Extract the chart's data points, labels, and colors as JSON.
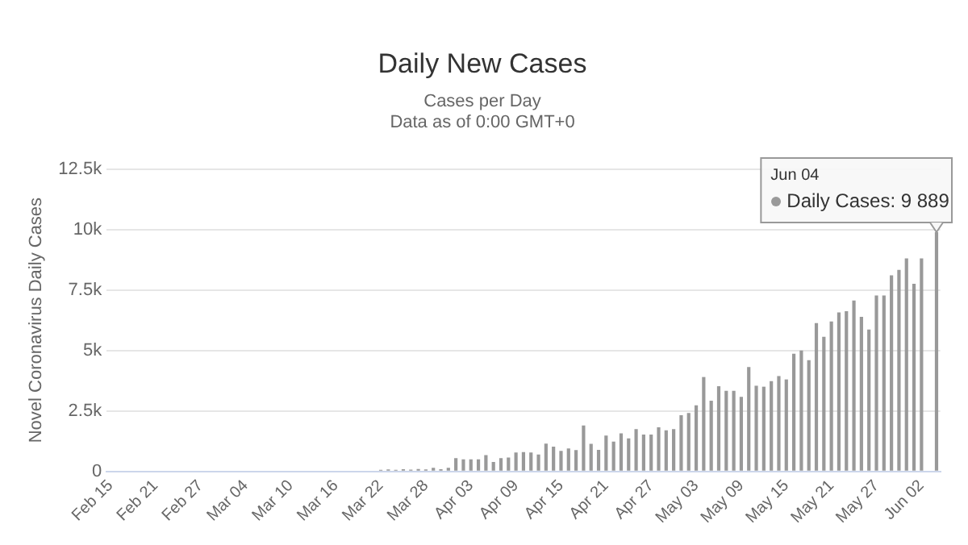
{
  "chart_data": {
    "type": "bar",
    "title": "Daily New Cases",
    "subtitle": "Cases per Day\nData as of 0:00 GMT+0",
    "ylabel": "Novel Coronavirus Daily Cases",
    "categories": [
      "Feb 15",
      null,
      null,
      null,
      null,
      null,
      "Feb 21",
      null,
      null,
      null,
      null,
      null,
      "Feb 27",
      null,
      null,
      null,
      null,
      null,
      "Mar 04",
      null,
      null,
      null,
      null,
      null,
      "Mar 10",
      null,
      null,
      null,
      null,
      null,
      "Mar 16",
      null,
      null,
      null,
      null,
      null,
      "Mar 22",
      null,
      null,
      null,
      null,
      null,
      "Mar 28",
      null,
      null,
      null,
      null,
      null,
      "Apr 03",
      null,
      null,
      null,
      null,
      null,
      "Apr 09",
      null,
      null,
      null,
      null,
      null,
      "Apr 15",
      null,
      null,
      null,
      null,
      null,
      "Apr 21",
      null,
      null,
      null,
      null,
      null,
      "Apr 27",
      null,
      null,
      null,
      null,
      null,
      "May 03",
      null,
      null,
      null,
      null,
      null,
      "May 09",
      null,
      null,
      null,
      null,
      null,
      "May 15",
      null,
      null,
      null,
      null,
      null,
      "May 21",
      null,
      null,
      null,
      null,
      null,
      "May 27",
      null,
      null,
      null,
      null,
      null,
      "Jun 02",
      null,
      null
    ],
    "values": [
      0,
      0,
      0,
      0,
      0,
      0,
      0,
      0,
      0,
      0,
      0,
      0,
      0,
      0,
      0,
      0,
      0,
      0,
      0,
      0,
      0,
      0,
      0,
      0,
      0,
      0,
      0,
      0,
      0,
      0,
      0,
      0,
      0,
      0,
      0,
      0,
      60,
      80,
      60,
      90,
      70,
      100,
      80,
      150,
      90,
      150,
      550,
      500,
      500,
      500,
      670,
      390,
      550,
      570,
      780,
      800,
      780,
      700,
      1150,
      1020,
      850,
      950,
      880,
      1900,
      1140,
      890,
      1480,
      1230,
      1570,
      1360,
      1750,
      1520,
      1520,
      1820,
      1700,
      1750,
      2320,
      2410,
      2730,
      3900,
      2920,
      3520,
      3330,
      3330,
      3080,
      4310,
      3540,
      3500,
      3730,
      3940,
      3800,
      4860,
      5000,
      4600,
      6130,
      5560,
      6200,
      6570,
      6620,
      7060,
      6390,
      5860,
      7270,
      7270,
      8100,
      8330,
      8800,
      7750,
      8800,
      null,
      9889
    ],
    "color": "#999999",
    "ylim": [
      0,
      12500
    ],
    "yticks": [
      0,
      {
        "value": 2500,
        "label": "2.5k"
      },
      {
        "value": 5000,
        "label": "5k"
      },
      {
        "value": 7500,
        "label": "7.5k"
      },
      {
        "value": 10000,
        "label": "10k"
      },
      {
        "value": 12500,
        "label": "12.5k"
      }
    ],
    "grid": "y",
    "legend": false,
    "annotations": [
      "Jun 04\nDaily Cases: 9 889"
    ]
  }
}
